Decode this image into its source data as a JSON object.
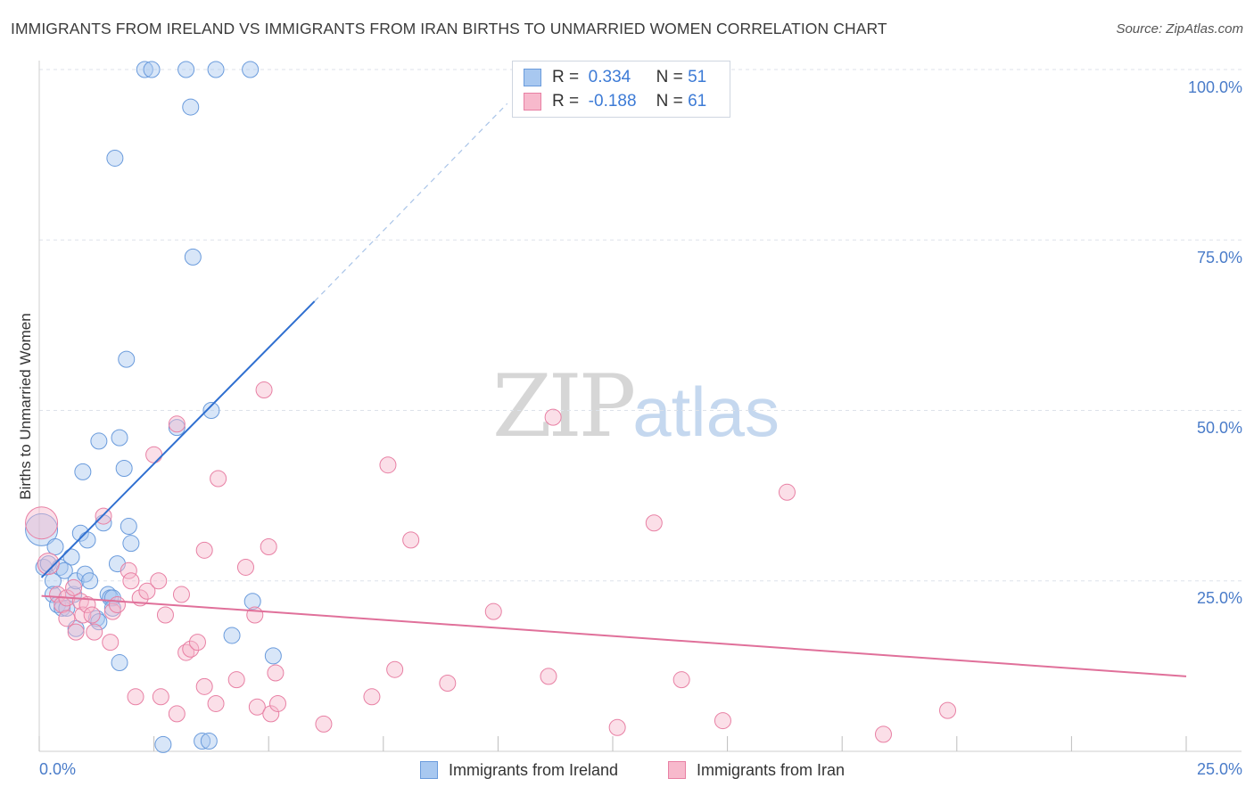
{
  "title": "IMMIGRANTS FROM IRELAND VS IMMIGRANTS FROM IRAN BIRTHS TO UNMARRIED WOMEN CORRELATION CHART",
  "source": "Source: ZipAtlas.com",
  "watermark": {
    "zip": "ZIP",
    "atlas": "atlas"
  },
  "legend": {
    "r_label": "R =",
    "n_label": "N =",
    "rows": [
      {
        "r": "0.334",
        "n": "51",
        "color": "#a8c8f0",
        "border": "#6a9bdc"
      },
      {
        "r": "-0.188",
        "n": "61",
        "color": "#f7b9cc",
        "border": "#e880a4"
      }
    ]
  },
  "bottom_legend": [
    {
      "label": "Immigrants from Ireland",
      "color": "#a8c8f0",
      "border": "#6a9bdc"
    },
    {
      "label": "Immigrants from Iran",
      "color": "#f7b9cc",
      "border": "#e880a4"
    }
  ],
  "chart_data": {
    "type": "scatter",
    "title": "IMMIGRANTS FROM IRELAND VS IMMIGRANTS FROM IRAN BIRTHS TO UNMARRIED WOMEN CORRELATION CHART",
    "xlabel": "",
    "ylabel": "Births to Unmarried Women",
    "xlim": [
      0,
      25
    ],
    "ylim": [
      0,
      100
    ],
    "x_tick_labels": [
      "0.0%",
      "25.0%"
    ],
    "y_tick_labels": [
      "100.0%",
      "75.0%",
      "50.0%",
      "25.0%"
    ],
    "y_ticks": [
      100,
      75,
      50,
      25
    ],
    "series": [
      {
        "name": "Immigrants from Ireland",
        "color": "#a8c8f0",
        "stroke": "#6a9bdc",
        "trend_color": "#2f6fd0",
        "trend": {
          "x0": 0.05,
          "y0": 25.5,
          "x1": 6.0,
          "y1": 66.0,
          "dash_to_x": 10.2,
          "dash_to_y": 95.0
        },
        "points": [
          [
            0.05,
            32.5,
            18
          ],
          [
            0.1,
            27.0,
            9
          ],
          [
            0.2,
            27.5,
            9
          ],
          [
            0.3,
            25.0,
            9
          ],
          [
            0.3,
            23.0,
            9
          ],
          [
            0.35,
            30.0,
            9
          ],
          [
            0.4,
            21.5,
            9
          ],
          [
            0.45,
            27.0,
            9
          ],
          [
            0.5,
            21.0,
            9
          ],
          [
            0.6,
            21.0,
            9
          ],
          [
            0.7,
            28.5,
            9
          ],
          [
            0.75,
            23.0,
            9
          ],
          [
            0.8,
            25.0,
            9
          ],
          [
            0.8,
            18.0,
            9
          ],
          [
            0.9,
            32.0,
            9
          ],
          [
            0.95,
            41.0,
            9
          ],
          [
            1.0,
            26.0,
            9
          ],
          [
            1.05,
            31.0,
            9
          ],
          [
            1.1,
            25.0,
            9
          ],
          [
            1.25,
            19.5,
            9
          ],
          [
            1.3,
            19.0,
            9
          ],
          [
            1.3,
            45.5,
            9
          ],
          [
            1.4,
            33.5,
            9
          ],
          [
            1.5,
            23.0,
            9
          ],
          [
            1.55,
            22.5,
            9
          ],
          [
            1.6,
            22.5,
            9
          ],
          [
            1.65,
            87.0,
            9
          ],
          [
            1.7,
            27.5,
            9
          ],
          [
            1.75,
            13.0,
            9
          ],
          [
            1.75,
            46.0,
            9
          ],
          [
            1.85,
            41.5,
            9
          ],
          [
            1.9,
            57.5,
            9
          ],
          [
            1.95,
            33.0,
            9
          ],
          [
            2.0,
            30.5,
            9
          ],
          [
            2.3,
            100.0,
            9
          ],
          [
            2.45,
            100.0,
            9
          ],
          [
            2.7,
            1.0,
            9
          ],
          [
            3.0,
            47.5,
            9
          ],
          [
            3.2,
            100.0,
            9
          ],
          [
            3.3,
            94.5,
            9
          ],
          [
            3.35,
            72.5,
            9
          ],
          [
            3.55,
            1.5,
            9
          ],
          [
            3.7,
            1.5,
            9
          ],
          [
            3.75,
            50.0,
            9
          ],
          [
            3.85,
            100.0,
            9
          ],
          [
            4.2,
            17.0,
            9
          ],
          [
            4.6,
            100.0,
            9
          ],
          [
            4.65,
            22.0,
            9
          ],
          [
            5.1,
            14.0,
            9
          ],
          [
            1.6,
            21.0,
            9
          ],
          [
            0.55,
            26.5,
            9
          ]
        ]
      },
      {
        "name": "Immigrants from Iran",
        "color": "#f7b9cc",
        "stroke": "#e880a4",
        "trend_color": "#e0709a",
        "trend": {
          "x0": 0.05,
          "y0": 22.8,
          "x1": 25.0,
          "y1": 11.0
        },
        "points": [
          [
            0.05,
            33.5,
            18
          ],
          [
            0.2,
            27.5,
            12
          ],
          [
            0.4,
            23.0,
            9
          ],
          [
            0.5,
            21.5,
            9
          ],
          [
            0.6,
            22.5,
            9
          ],
          [
            0.6,
            19.5,
            9
          ],
          [
            0.75,
            24.0,
            9
          ],
          [
            0.8,
            17.5,
            9
          ],
          [
            0.9,
            22.0,
            9
          ],
          [
            0.95,
            20.0,
            9
          ],
          [
            1.05,
            21.5,
            9
          ],
          [
            1.15,
            20.0,
            9
          ],
          [
            1.2,
            17.5,
            9
          ],
          [
            1.4,
            34.5,
            9
          ],
          [
            1.55,
            16.0,
            9
          ],
          [
            1.6,
            20.5,
            9
          ],
          [
            1.7,
            21.5,
            9
          ],
          [
            1.95,
            26.5,
            9
          ],
          [
            2.0,
            25.0,
            9
          ],
          [
            2.1,
            8.0,
            9
          ],
          [
            2.2,
            22.5,
            9
          ],
          [
            2.35,
            23.5,
            9
          ],
          [
            2.5,
            43.5,
            9
          ],
          [
            2.6,
            25.0,
            9
          ],
          [
            2.65,
            8.0,
            9
          ],
          [
            2.75,
            20.0,
            9
          ],
          [
            3.0,
            48.0,
            9
          ],
          [
            3.0,
            5.5,
            9
          ],
          [
            3.1,
            23.0,
            9
          ],
          [
            3.2,
            14.5,
            9
          ],
          [
            3.3,
            15.0,
            9
          ],
          [
            3.45,
            16.0,
            9
          ],
          [
            3.6,
            9.5,
            9
          ],
          [
            3.6,
            29.5,
            9
          ],
          [
            3.85,
            7.0,
            9
          ],
          [
            3.9,
            40.0,
            9
          ],
          [
            4.3,
            10.5,
            9
          ],
          [
            4.5,
            27.0,
            9
          ],
          [
            4.7,
            20.0,
            9
          ],
          [
            4.75,
            6.5,
            9
          ],
          [
            4.9,
            53.0,
            9
          ],
          [
            5.0,
            30.0,
            9
          ],
          [
            5.05,
            5.5,
            9
          ],
          [
            5.15,
            11.5,
            9
          ],
          [
            5.2,
            7.0,
            9
          ],
          [
            6.2,
            4.0,
            9
          ],
          [
            7.25,
            8.0,
            9
          ],
          [
            7.6,
            42.0,
            9
          ],
          [
            7.75,
            12.0,
            9
          ],
          [
            8.1,
            31.0,
            9
          ],
          [
            8.9,
            10.0,
            9
          ],
          [
            9.9,
            20.5,
            9
          ],
          [
            11.1,
            11.0,
            9
          ],
          [
            11.2,
            49.0,
            9
          ],
          [
            12.6,
            3.5,
            9
          ],
          [
            13.4,
            33.5,
            9
          ],
          [
            14.0,
            10.5,
            9
          ],
          [
            14.9,
            4.5,
            9
          ],
          [
            16.3,
            38.0,
            9
          ],
          [
            18.4,
            2.5,
            9
          ],
          [
            19.8,
            6.0,
            9
          ]
        ]
      }
    ]
  }
}
